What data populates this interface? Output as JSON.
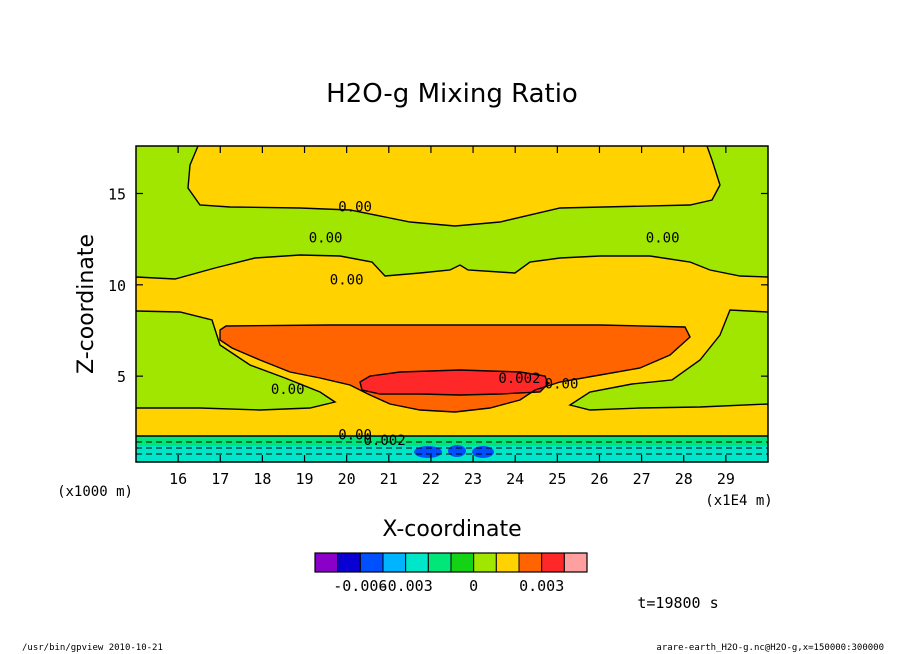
{
  "chart_data": {
    "type": "heatmap",
    "title": "H2O-g Mixing Ratio",
    "xlabel": "X-coordinate",
    "ylabel": "Z-coordinate",
    "x_unit_label": "(x1E4 m)",
    "y_unit_label": "(x1000 m)",
    "xlim": [
      15,
      30
    ],
    "ylim": [
      0.3,
      17.6
    ],
    "x_ticks": [
      16,
      17,
      18,
      19,
      20,
      21,
      22,
      23,
      24,
      25,
      26,
      27,
      28,
      29
    ],
    "y_ticks": [
      5,
      10,
      15
    ],
    "contour_labels": [
      {
        "text": "0.00",
        "x": 20.2,
        "z": 14.3
      },
      {
        "text": "0.00",
        "x": 19.5,
        "z": 12.6
      },
      {
        "text": "0.00",
        "x": 27.5,
        "z": 12.6
      },
      {
        "text": "0.00",
        "x": 20.0,
        "z": 10.3
      },
      {
        "text": "0.00",
        "x": 18.6,
        "z": 4.3
      },
      {
        "text": "0.002",
        "x": 24.1,
        "z": 4.9
      },
      {
        "text": "0.00",
        "x": 25.1,
        "z": 4.6
      },
      {
        "text": "0.00",
        "x": 20.2,
        "z": 1.8
      },
      {
        "text": "0.002",
        "x": 20.9,
        "z": 1.5
      }
    ],
    "colorbar": {
      "colors": [
        "#8a00c8",
        "#0a00d2",
        "#0050ff",
        "#00b4ff",
        "#00e6c8",
        "#00e678",
        "#14d214",
        "#a0e600",
        "#ffd200",
        "#ff6400",
        "#ff2828",
        "#ffa0a0"
      ],
      "tick_labels": [
        "-0.006",
        "-0.003",
        "0",
        "0.003"
      ]
    },
    "time_label": "t=19800 s"
  },
  "footer": {
    "left": "/usr/bin/gpview  2010-10-21",
    "right": "arare-earth_H2O-g.nc@H2O-g,x=150000:300000"
  }
}
